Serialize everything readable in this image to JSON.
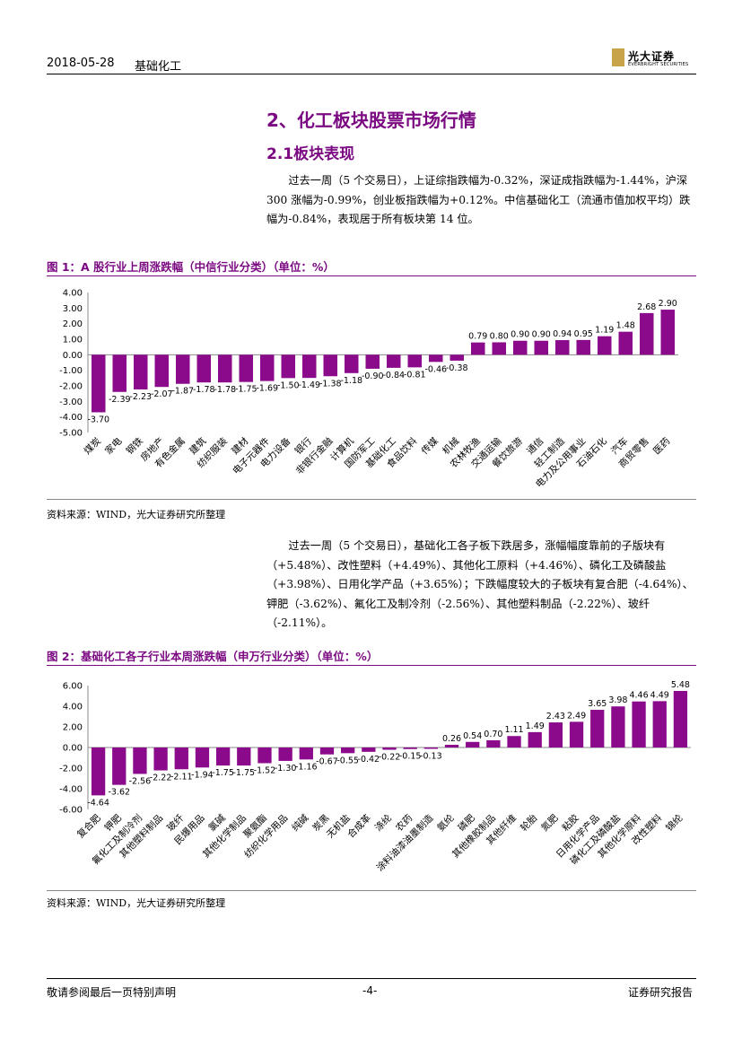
{
  "header": {
    "date": "2018-05-28",
    "category": "基础化工",
    "logo_cn": "光大证券",
    "logo_en": "EVERBRIGHT SECURITIES"
  },
  "section": {
    "title": "2、化工板块股票市场行情",
    "subtitle": "2.1板块表现"
  },
  "paragraph1": "过去一周（5 个交易日），上证综指跌幅为-0.32%，深证成指跌幅为-1.44%，沪深 300 涨幅为-0.99%，创业板指跌幅为+0.12%。中信基础化工（流通市值加权平均）跌幅为-0.84%，表现居于所有板块第 14 位。",
  "figure1": {
    "title": "图 1：A 股行业上周涨跌幅（中信行业分类）（单位：%）",
    "source": "资料来源：WIND，光大证券研究所整理"
  },
  "paragraph2": "过去一周（5 个交易日），基础化工各子板下跌居多，涨幅幅度靠前的子版块有（+5.48%）、改性塑料（+4.49%）、其他化工原料（+4.46%）、磷化工及磷酸盐（+3.98%）、日用化学产品（+3.65%）；下跌幅度较大的子板块有复合肥（-4.64%）、钾肥（-3.62%）、氟化工及制冷剂（-2.56%）、其他塑料制品（-2.22%）、玻纤（-2.11%）。",
  "figure2": {
    "title": "图 2：基础化工各子行业本周涨跌幅（申万行业分类）（单位：%）",
    "source": "资料来源：WIND，光大证券研究所整理"
  },
  "footer": {
    "left": "敬请参阅最后一页特别声明",
    "page": "-4-",
    "right": "证券研究报告"
  },
  "colors": {
    "accent": "#7b0a82",
    "bar": "#8b0a8c"
  },
  "chart_data": [
    {
      "type": "bar",
      "title": "图 1：A 股行业上周涨跌幅（中信行业分类）（单位：%）",
      "ylim": [
        -5,
        4
      ],
      "yticks": [
        4,
        3,
        2,
        1,
        0,
        -1,
        -2,
        -3,
        -4,
        -5
      ],
      "categories": [
        "煤炭",
        "家电",
        "钢铁",
        "房地产",
        "有色金属",
        "建筑",
        "纺织服装",
        "建材",
        "电子元器件",
        "电力设备",
        "银行",
        "非银行金融",
        "计算机",
        "国防军工",
        "基础化工",
        "食品饮料",
        "传媒",
        "机械",
        "农林牧渔",
        "交通运输",
        "餐饮旅游",
        "通信",
        "轻工制造",
        "电力及公用事业",
        "石油石化",
        "汽车",
        "商贸零售",
        "医药"
      ],
      "values": [
        -3.7,
        -2.39,
        -2.23,
        -2.07,
        -1.87,
        -1.78,
        -1.78,
        -1.75,
        -1.69,
        -1.5,
        -1.49,
        -1.38,
        -1.18,
        -0.9,
        -0.84,
        -0.81,
        -0.46,
        -0.38,
        0.79,
        0.8,
        0.9,
        0.9,
        0.94,
        0.95,
        1.19,
        1.48,
        2.68,
        2.9
      ]
    },
    {
      "type": "bar",
      "title": "图 2：基础化工各子行业本周涨跌幅（申万行业分类）（单位：%）",
      "ylim": [
        -6,
        6
      ],
      "yticks": [
        6,
        4,
        2,
        0,
        -2,
        -4,
        -6
      ],
      "categories": [
        "复合肥",
        "钾肥",
        "氟化工及制冷剂",
        "其他塑料制品",
        "玻纤",
        "民爆用品",
        "氯碱",
        "其他化学制品",
        "聚氨酯",
        "纺织化学用品",
        "纯碱",
        "炭黑",
        "无机盐",
        "合成革",
        "涤纶",
        "农药",
        "涂料油漆油墨制造",
        "氨纶",
        "磷肥",
        "其他橡胶制品",
        "其他纤维",
        "轮胎",
        "氮肥",
        "粘胶",
        "日用化学产品",
        "磷化工及磷酸盐",
        "其他化学原料",
        "改性塑料",
        "锦纶"
      ],
      "values": [
        -4.64,
        -3.62,
        -2.56,
        -2.22,
        -2.11,
        -1.94,
        -1.75,
        -1.75,
        -1.52,
        -1.3,
        -1.16,
        -0.67,
        -0.55,
        -0.42,
        -0.22,
        -0.15,
        -0.13,
        0.26,
        0.54,
        0.7,
        1.11,
        1.49,
        2.43,
        2.49,
        3.65,
        3.98,
        4.46,
        4.49,
        5.48
      ]
    }
  ]
}
